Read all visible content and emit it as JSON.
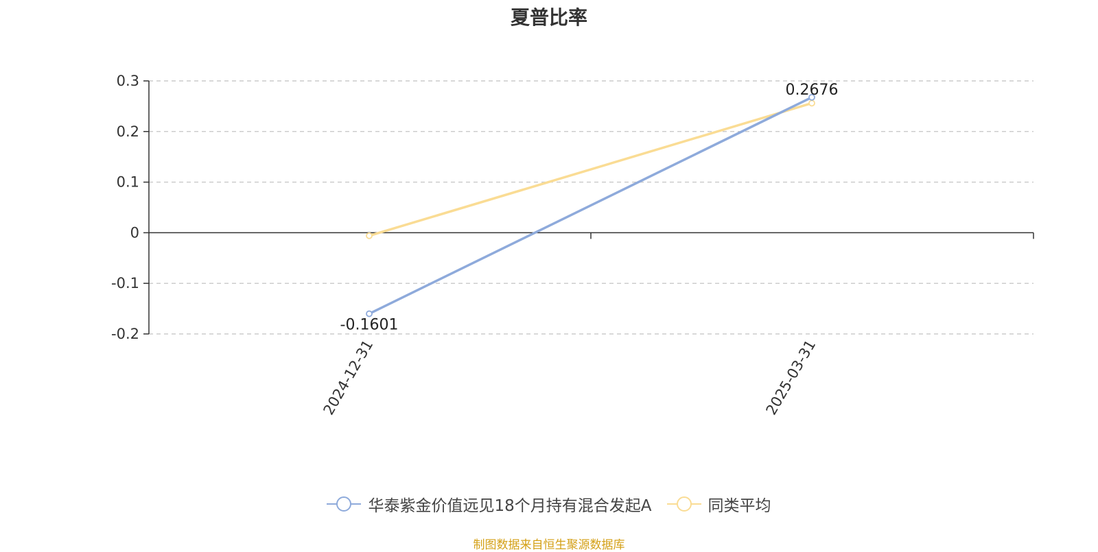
{
  "chart_data": {
    "type": "line",
    "title": "夏普比率",
    "x": [
      "2024-12-31",
      "2025-03-31"
    ],
    "ylim": [
      -0.2,
      0.3
    ],
    "yticks": [
      0.3,
      0.2,
      0.1,
      0,
      -0.1,
      -0.2
    ],
    "ytick_labels": [
      "0.3",
      "0.2",
      "0.1",
      "0",
      "-0.1",
      "-0.2"
    ],
    "grid": true,
    "legend_position": "bottom",
    "series": [
      {
        "name": "华泰紫金价值远见18个月持有混合发起A",
        "values": [
          -0.1601,
          0.2676
        ],
        "data_labels": [
          "-0.1601",
          "0.2676"
        ],
        "color": "#8eaadb"
      },
      {
        "name": "同类平均",
        "values": [
          -0.006,
          0.256
        ],
        "color": "#fadc94"
      }
    ]
  },
  "source_note": "制图数据来自恒生聚源数据库",
  "source_color": "#d4a017"
}
